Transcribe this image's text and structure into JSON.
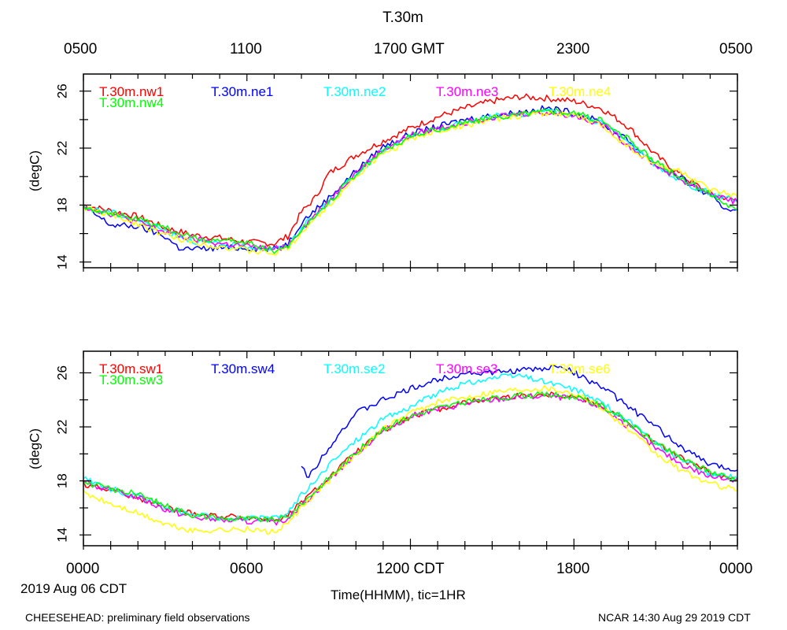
{
  "title": "T.30m",
  "gmt_tick_labels": [
    "0500",
    "1100",
    "1700 GMT",
    "2300",
    "0500"
  ],
  "cdt_tick_labels": [
    "0000",
    "0600",
    "1200 CDT",
    "1800",
    "0000"
  ],
  "date_label": "2019 Aug 06 CDT",
  "xlabel": "Time(HHMM), tic=1HR",
  "footer_left": "CHEESEHEAD: preliminary field observations",
  "footer_right": "NCAR 14:30 Aug 29 2019 CDT",
  "colors": {
    "red": "#ff0000",
    "blue": "#0000ff",
    "cyan": "#00ffff",
    "magenta": "#ff00ff",
    "yellow": "#ffff00",
    "green": "#00ff00"
  },
  "chart_data": [
    {
      "type": "line",
      "panel": "top",
      "ylabel": "(degC)",
      "xlim": [
        0,
        24
      ],
      "ylim": [
        13.6,
        27.2
      ],
      "yticks": [
        14,
        18,
        22,
        26
      ],
      "x_unit": "hours CDT",
      "series": [
        {
          "name": "T.30m.nw1",
          "color": "#ff0000",
          "x": [
            0,
            1,
            2,
            3,
            4,
            5,
            6,
            7,
            7.5,
            8,
            8.5,
            9,
            10,
            11,
            12,
            13,
            14,
            15,
            16,
            17,
            18,
            19,
            20,
            21,
            22,
            23,
            24
          ],
          "y": [
            18.0,
            17.6,
            17.2,
            16.4,
            15.9,
            15.7,
            15.4,
            15.3,
            15.8,
            17.5,
            18.5,
            20.2,
            21.5,
            22.5,
            23.4,
            24.2,
            24.8,
            25.3,
            25.6,
            25.5,
            25.3,
            24.8,
            23.5,
            21.5,
            20.0,
            18.8,
            18.3
          ]
        },
        {
          "name": "T.30m.ne1",
          "color": "#0000ff",
          "x": [
            0,
            1,
            2,
            3,
            3.5,
            4,
            5,
            6,
            7,
            7.5,
            8,
            9,
            10,
            11,
            12,
            13,
            14,
            15,
            16,
            17,
            18,
            19,
            20,
            21,
            22,
            23,
            23.5,
            24
          ],
          "y": [
            17.9,
            16.6,
            16.5,
            15.8,
            15.0,
            14.9,
            15.0,
            15.0,
            14.9,
            15.3,
            16.8,
            18.5,
            20.4,
            22.1,
            23.0,
            23.5,
            24.0,
            24.3,
            24.5,
            24.8,
            24.5,
            23.8,
            22.5,
            20.8,
            19.8,
            18.6,
            17.8,
            17.7
          ]
        },
        {
          "name": "T.30m.ne2",
          "color": "#00ffff",
          "x": [
            0,
            1,
            2,
            3,
            4,
            5,
            6,
            7,
            7.5,
            8,
            9,
            10,
            11,
            12,
            13,
            14,
            15,
            16,
            17,
            18,
            19,
            20,
            21,
            22,
            23,
            24
          ],
          "y": [
            17.8,
            17.5,
            16.9,
            16.2,
            15.5,
            15.2,
            15.1,
            14.9,
            15.1,
            16.4,
            18.2,
            20.2,
            21.8,
            22.8,
            23.3,
            23.8,
            24.2,
            24.4,
            24.5,
            24.4,
            23.8,
            22.4,
            20.8,
            19.6,
            18.8,
            18.4
          ]
        },
        {
          "name": "T.30m.ne3",
          "color": "#ff00ff",
          "x": [
            0,
            1,
            2,
            3,
            4,
            5,
            6,
            7,
            7.5,
            8,
            9,
            10,
            11,
            12,
            13,
            14,
            15,
            16,
            17,
            18,
            19,
            20,
            21,
            22,
            23,
            24
          ],
          "y": [
            17.9,
            17.4,
            16.8,
            16.1,
            15.6,
            15.3,
            15.1,
            14.9,
            15.2,
            16.3,
            18.3,
            20.3,
            21.9,
            22.9,
            23.4,
            23.8,
            24.2,
            24.4,
            24.5,
            24.3,
            23.7,
            22.2,
            20.8,
            19.7,
            18.8,
            18.2
          ]
        },
        {
          "name": "T.30m.ne4",
          "color": "#ffff00",
          "x": [
            0,
            1,
            2,
            3,
            4,
            5,
            6,
            7,
            7.5,
            8,
            9,
            10,
            11,
            12,
            13,
            14,
            15,
            16,
            17,
            18,
            19,
            20,
            21,
            22,
            23,
            24
          ],
          "y": [
            17.8,
            17.3,
            16.7,
            15.9,
            15.4,
            15.1,
            14.8,
            14.6,
            15.0,
            16.1,
            18.0,
            20.0,
            21.6,
            22.6,
            23.2,
            23.6,
            24.0,
            24.3,
            24.5,
            24.3,
            23.6,
            22.1,
            20.8,
            20.3,
            19.0,
            18.6
          ]
        },
        {
          "name": "T.30m.nw4",
          "color": "#00ff00",
          "x": [
            0,
            1,
            2,
            3,
            4,
            5,
            6,
            7,
            7.5,
            8,
            9,
            10,
            11,
            12,
            13,
            14,
            15,
            16,
            17,
            18,
            19,
            20,
            21,
            22,
            23,
            24
          ],
          "y": [
            17.9,
            17.4,
            17.0,
            16.4,
            15.7,
            15.5,
            15.4,
            14.8,
            15.1,
            16.3,
            18.2,
            20.2,
            21.8,
            22.8,
            23.3,
            23.8,
            24.1,
            24.4,
            24.6,
            24.5,
            23.9,
            22.6,
            21.0,
            19.8,
            18.8,
            17.6
          ]
        }
      ]
    },
    {
      "type": "line",
      "panel": "bottom",
      "ylabel": "(degC)",
      "xlim": [
        0,
        24
      ],
      "ylim": [
        13.2,
        27.6
      ],
      "yticks": [
        14,
        18,
        22,
        26
      ],
      "x_unit": "hours CDT",
      "series": [
        {
          "name": "T.30m.sw1",
          "color": "#ff0000",
          "x": [
            0,
            1,
            2,
            3,
            4,
            5,
            6,
            7,
            7.5,
            8,
            9,
            10,
            11,
            12,
            13,
            14,
            15,
            16,
            17,
            18,
            19,
            20,
            21,
            22,
            23,
            24
          ],
          "y": [
            17.8,
            17.3,
            16.8,
            16.0,
            15.6,
            15.4,
            15.3,
            15.1,
            15.4,
            16.4,
            18.2,
            20.1,
            21.7,
            22.7,
            23.3,
            23.8,
            24.1,
            24.3,
            24.4,
            24.3,
            23.6,
            22.3,
            20.8,
            19.6,
            18.6,
            18.2
          ]
        },
        {
          "name": "T.30m.sw4",
          "color": "#0000ff",
          "x": [
            8,
            8.2,
            8.5,
            9,
            9.5,
            10,
            11,
            12,
            13,
            14,
            15,
            16,
            17,
            17.5,
            18,
            19,
            20,
            21,
            22,
            23,
            24
          ],
          "y": [
            19.2,
            18.2,
            19.0,
            20.5,
            21.8,
            23.0,
            24.0,
            24.8,
            25.5,
            26.0,
            26.0,
            26.2,
            26.3,
            26.6,
            26.0,
            25.0,
            23.5,
            22.0,
            20.4,
            19.2,
            18.8
          ]
        },
        {
          "name": "T.30m.se2",
          "color": "#00ffff",
          "x": [
            0,
            1,
            2,
            3,
            4,
            5,
            6,
            7,
            7.5,
            8,
            8.5,
            9,
            10,
            11,
            12,
            13,
            14,
            15,
            16,
            17,
            18,
            19,
            20,
            21,
            22,
            23,
            24
          ],
          "y": [
            18.2,
            17.4,
            16.9,
            16.0,
            15.5,
            15.3,
            15.2,
            15.2,
            15.6,
            17.0,
            17.9,
            19.2,
            21.0,
            22.6,
            23.5,
            24.5,
            25.2,
            25.6,
            25.8,
            25.3,
            24.8,
            23.8,
            22.4,
            20.8,
            19.5,
            18.5,
            18.2
          ]
        },
        {
          "name": "T.30m.se3",
          "color": "#ff00ff",
          "x": [
            0,
            1,
            2,
            3,
            4,
            5,
            6,
            7,
            7.5,
            8,
            9,
            10,
            11,
            12,
            13,
            14,
            15,
            16,
            17,
            18,
            19,
            20,
            21,
            22,
            23,
            24
          ],
          "y": [
            17.9,
            17.3,
            16.8,
            15.9,
            15.3,
            15.1,
            15.0,
            14.9,
            15.2,
            16.2,
            18.1,
            20.0,
            21.7,
            22.8,
            23.3,
            23.7,
            24.0,
            24.2,
            24.3,
            24.1,
            23.5,
            22.0,
            20.4,
            19.2,
            18.3,
            18.1
          ]
        },
        {
          "name": "T.30m.se6",
          "color": "#ffff00",
          "x": [
            0,
            1,
            2,
            3,
            4,
            5,
            6,
            7,
            7.5,
            8,
            9,
            10,
            11,
            12,
            13,
            14,
            15,
            16,
            17,
            18,
            19,
            20,
            21,
            22,
            23,
            24
          ],
          "y": [
            17.1,
            16.3,
            15.6,
            14.8,
            14.3,
            14.4,
            14.4,
            14.2,
            14.8,
            16.0,
            18.0,
            20.0,
            21.8,
            23.0,
            23.8,
            24.2,
            24.6,
            24.8,
            24.9,
            24.5,
            23.5,
            21.8,
            20.0,
            18.7,
            17.8,
            17.3
          ]
        },
        {
          "name": "T.30m.sw3",
          "color": "#00ff00",
          "x": [
            0,
            1,
            2,
            3,
            4,
            5,
            6,
            7,
            7.5,
            8,
            9,
            10,
            11,
            12,
            13,
            14,
            15,
            16,
            17,
            18,
            19,
            20,
            21,
            22,
            23,
            24
          ],
          "y": [
            17.9,
            17.4,
            17.0,
            16.2,
            15.5,
            15.2,
            15.2,
            15.1,
            15.3,
            16.3,
            18.2,
            20.1,
            21.8,
            22.8,
            23.4,
            23.8,
            24.1,
            24.3,
            24.4,
            24.2,
            23.6,
            22.3,
            20.8,
            19.6,
            18.7,
            18.1
          ]
        }
      ]
    }
  ]
}
